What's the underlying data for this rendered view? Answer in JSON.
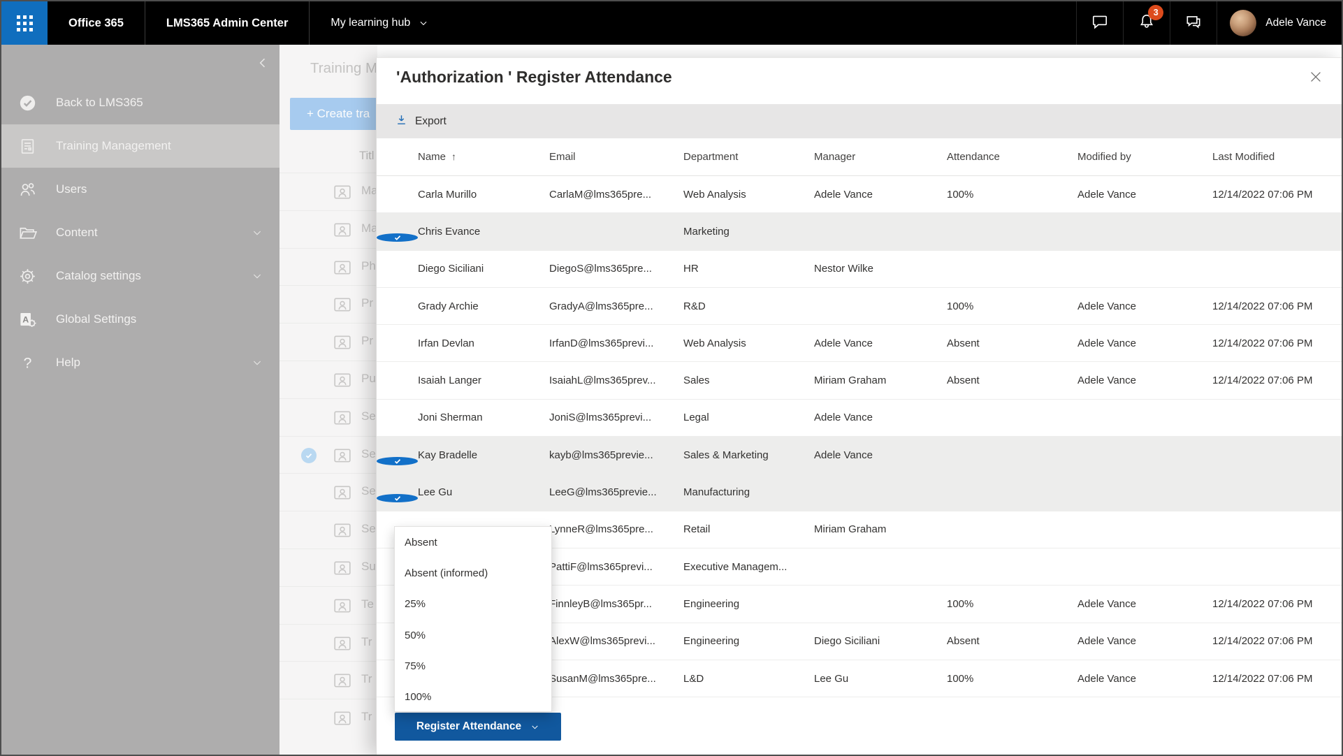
{
  "topbar": {
    "waffle_icon": "app-launcher-icon",
    "products": [
      "Office 365",
      "LMS365 Admin Center"
    ],
    "hub_label": "My learning hub",
    "hub_chevron_icon": "chevron-down-icon",
    "chat_icon": "chat-icon",
    "notifications_icon": "bell-icon",
    "notification_badge": "3",
    "feedback_icon": "feedback-icon",
    "user_name": "Adele Vance",
    "badge_color": "#dd4b1c",
    "launcher_color": "#106ebe"
  },
  "sidebar": {
    "collapse_icon": "chevron-left-icon",
    "items": [
      {
        "label": "Back to LMS365",
        "icon": "check-circle-icon",
        "selected": false,
        "chevron": false
      },
      {
        "label": "Training Management",
        "icon": "training-icon",
        "selected": true,
        "chevron": false
      },
      {
        "label": "Users",
        "icon": "users-icon",
        "selected": false,
        "chevron": false
      },
      {
        "label": "Content",
        "icon": "folder-icon",
        "selected": false,
        "chevron": true
      },
      {
        "label": "Catalog settings",
        "icon": "gear-icon",
        "selected": false,
        "chevron": true
      },
      {
        "label": "Global Settings",
        "icon": "global-settings-icon",
        "selected": false,
        "chevron": false
      },
      {
        "label": "Help",
        "icon": "help-icon",
        "selected": false,
        "chevron": true
      }
    ]
  },
  "background_page": {
    "title": "Training M",
    "create_button_label": "+ Create tra",
    "column_header": "Titl",
    "row_icon": "person-badge-icon",
    "rows": [
      {
        "label": "Ma",
        "checked": false
      },
      {
        "label": "Ma",
        "checked": false
      },
      {
        "label": "Ph",
        "checked": false
      },
      {
        "label": "Pr",
        "checked": false
      },
      {
        "label": "Pr",
        "checked": false
      },
      {
        "label": "Pu",
        "checked": false
      },
      {
        "label": "Se",
        "checked": false
      },
      {
        "label": "Se",
        "checked": true
      },
      {
        "label": "Se",
        "checked": false
      },
      {
        "label": "Se",
        "checked": false
      },
      {
        "label": "Su",
        "checked": false
      },
      {
        "label": "Te",
        "checked": false
      },
      {
        "label": "Tr",
        "checked": false
      },
      {
        "label": "Tr",
        "checked": false
      },
      {
        "label": "Tr",
        "checked": false
      }
    ]
  },
  "modal": {
    "title": "'Authorization ' Register Attendance",
    "close_icon": "close-icon",
    "export_label": "Export",
    "export_icon": "download-icon",
    "table": {
      "columns": [
        "Name",
        "Email",
        "Department",
        "Manager",
        "Attendance",
        "Modified by",
        "Last Modified"
      ],
      "sort": {
        "column": "Name",
        "direction": "asc"
      },
      "rows": [
        {
          "selected": false,
          "name": "Carla Murillo",
          "email": "CarlaM@lms365pre...",
          "department": "Web Analysis",
          "manager": "Adele Vance",
          "attendance": "100%",
          "modified_by": "Adele Vance",
          "last_modified": "12/14/2022 07:06 PM"
        },
        {
          "selected": true,
          "name": "Chris Evance",
          "email": "",
          "department": "Marketing",
          "manager": "",
          "attendance": "",
          "modified_by": "",
          "last_modified": ""
        },
        {
          "selected": false,
          "name": "Diego Siciliani",
          "email": "DiegoS@lms365pre...",
          "department": "HR",
          "manager": "Nestor Wilke",
          "attendance": "",
          "modified_by": "",
          "last_modified": ""
        },
        {
          "selected": false,
          "name": "Grady Archie",
          "email": "GradyA@lms365pre...",
          "department": "R&D",
          "manager": "",
          "attendance": "100%",
          "modified_by": "Adele Vance",
          "last_modified": "12/14/2022 07:06 PM"
        },
        {
          "selected": false,
          "name": "Irfan Devlan",
          "email": "IrfanD@lms365previ...",
          "department": "Web Analysis",
          "manager": "Adele Vance",
          "attendance": "Absent",
          "modified_by": "Adele Vance",
          "last_modified": "12/14/2022 07:06 PM"
        },
        {
          "selected": false,
          "name": "Isaiah Langer",
          "email": "IsaiahL@lms365prev...",
          "department": "Sales",
          "manager": "Miriam Graham",
          "attendance": "Absent",
          "modified_by": "Adele Vance",
          "last_modified": "12/14/2022 07:06 PM"
        },
        {
          "selected": false,
          "name": "Joni Sherman",
          "email": "JoniS@lms365previ...",
          "department": "Legal",
          "manager": "Adele Vance",
          "attendance": "",
          "modified_by": "",
          "last_modified": ""
        },
        {
          "selected": true,
          "name": "Kay Bradelle",
          "email": "kayb@lms365previe...",
          "department": "Sales & Marketing",
          "manager": "Adele Vance",
          "attendance": "",
          "modified_by": "",
          "last_modified": ""
        },
        {
          "selected": true,
          "name": "Lee Gu",
          "email": "LeeG@lms365previe...",
          "department": "Manufacturing",
          "manager": "",
          "attendance": "",
          "modified_by": "",
          "last_modified": ""
        },
        {
          "selected": false,
          "name": "",
          "email": "LynneR@lms365pre...",
          "department": "Retail",
          "manager": "Miriam Graham",
          "attendance": "",
          "modified_by": "",
          "last_modified": ""
        },
        {
          "selected": false,
          "name": "",
          "email": "PattiF@lms365previ...",
          "department": "Executive Managem...",
          "manager": "",
          "attendance": "",
          "modified_by": "",
          "last_modified": ""
        },
        {
          "selected": false,
          "name": "",
          "email": "FinnleyB@lms365pr...",
          "department": "Engineering",
          "manager": "",
          "attendance": "100%",
          "modified_by": "Adele Vance",
          "last_modified": "12/14/2022 07:06 PM"
        },
        {
          "selected": false,
          "name": "",
          "email": "AlexW@lms365previ...",
          "department": "Engineering",
          "manager": "Diego Siciliani",
          "attendance": "Absent",
          "modified_by": "Adele Vance",
          "last_modified": "12/14/2022 07:06 PM"
        },
        {
          "selected": false,
          "name": "",
          "email": "SusanM@lms365pre...",
          "department": "L&D",
          "manager": "Lee Gu",
          "attendance": "100%",
          "modified_by": "Adele Vance",
          "last_modified": "12/14/2022 07:06 PM"
        }
      ]
    },
    "attendance_dropdown": {
      "options": [
        "Absent",
        "Absent (informed)",
        "25%",
        "50%",
        "75%",
        "100%"
      ]
    },
    "register_button_label": "Register Attendance",
    "register_button_color": "#11589e",
    "selected_check_color": "#1270c8"
  }
}
